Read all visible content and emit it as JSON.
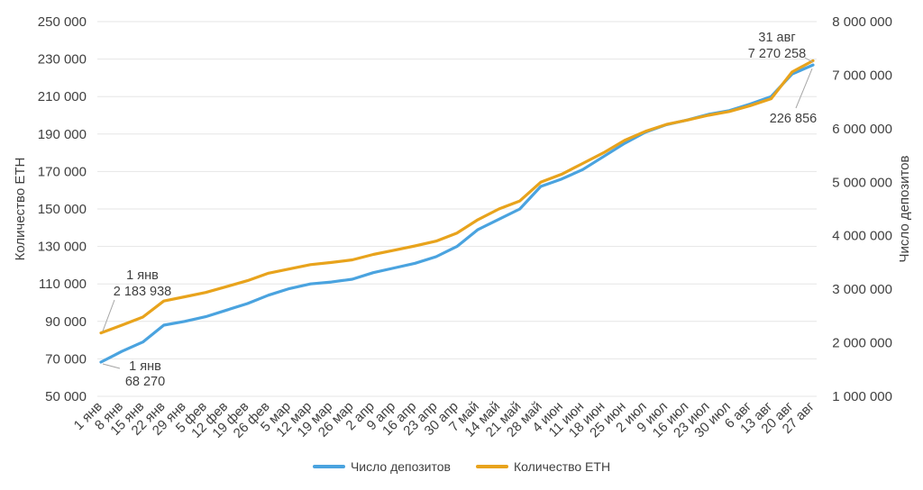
{
  "chart_data": {
    "type": "line",
    "title": "",
    "xlabel": "",
    "ylabel_left": "Количество ETH",
    "ylabel_right": "Число депозитов",
    "ylim_left": [
      50000,
      250000
    ],
    "ylim_right": [
      1000000,
      8000000
    ],
    "left_ticks": [
      "50 000",
      "70 000",
      "90 000",
      "110 000",
      "130 000",
      "150 000",
      "170 000",
      "190 000",
      "210 000",
      "230 000",
      "250 000"
    ],
    "right_ticks": [
      "1 000 000",
      "2 000 000",
      "3 000 000",
      "4 000 000",
      "5 000 000",
      "6 000 000",
      "7 000 000",
      "8 000 000"
    ],
    "categories": [
      "1 янв",
      "8 янв",
      "15 янв",
      "22 янв",
      "29 янв",
      "5 фев",
      "12 фев",
      "19 фев",
      "26 фев",
      "5 мар",
      "12 мар",
      "19 мар",
      "26 мар",
      "2 апр",
      "9 апр",
      "16 апр",
      "23 апр",
      "30 апр",
      "7 май",
      "14 май",
      "21 май",
      "28 май",
      "4 июн",
      "11 июн",
      "18 июн",
      "25 июн",
      "2 июл",
      "9 июл",
      "16 июл",
      "23 июл",
      "30 июл",
      "6 авг",
      "13 авг",
      "20 авг",
      "27 авг"
    ],
    "series": [
      {
        "name": "Число депозитов",
        "axis": "left",
        "color": "#4aa3df",
        "values": [
          68270,
          74000,
          79000,
          88000,
          90000,
          92500,
          96000,
          99500,
          104000,
          107500,
          110000,
          111000,
          112500,
          116000,
          118500,
          121000,
          124500,
          130000,
          139000,
          144500,
          150000,
          162000,
          166000,
          171000,
          178000,
          185000,
          191000,
          195000,
          197500,
          200500,
          202500,
          206000,
          210000,
          222000,
          226856
        ]
      },
      {
        "name": "Количество ETH",
        "axis": "right",
        "color": "#e8a31c",
        "values": [
          2183938,
          2330000,
          2480000,
          2780000,
          2860000,
          2940000,
          3050000,
          3160000,
          3300000,
          3380000,
          3460000,
          3500000,
          3550000,
          3650000,
          3730000,
          3810000,
          3900000,
          4050000,
          4300000,
          4500000,
          4650000,
          5000000,
          5150000,
          5350000,
          5550000,
          5780000,
          5950000,
          6080000,
          6160000,
          6250000,
          6320000,
          6430000,
          6560000,
          7060000,
          7270258
        ]
      }
    ],
    "annotations": [
      {
        "date": "1 янв",
        "value": "2 183 938"
      },
      {
        "date": "1 янв",
        "value": "68 270"
      },
      {
        "date": "31 авг",
        "value": "7 270 258"
      },
      {
        "value": "226 856"
      }
    ]
  }
}
